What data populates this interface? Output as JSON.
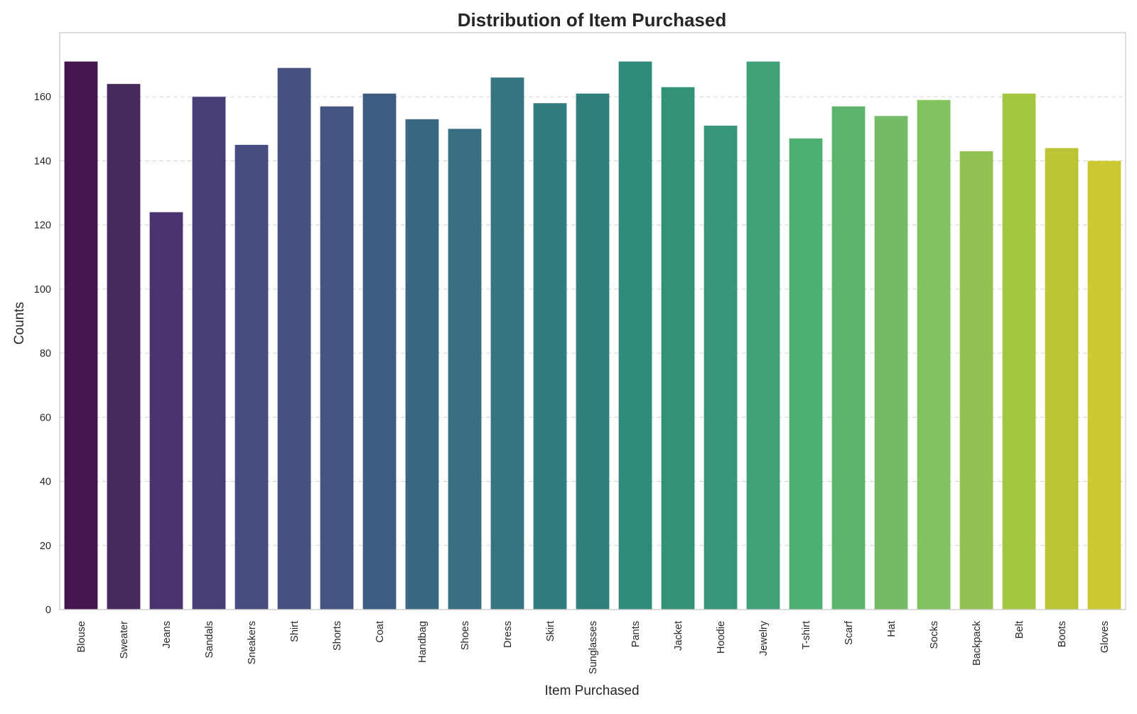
{
  "chart_data": {
    "type": "bar",
    "title": "Distribution of Item Purchased",
    "xlabel": "Item Purchased",
    "ylabel": "Counts",
    "ylim": [
      0,
      180
    ],
    "yticks": [
      0,
      20,
      40,
      60,
      80,
      100,
      120,
      140,
      160
    ],
    "grid": "horizontal-dashed",
    "categories": [
      "Blouse",
      "Sweater",
      "Jeans",
      "Sandals",
      "Sneakers",
      "Shirt",
      "Shorts",
      "Coat",
      "Handbag",
      "Shoes",
      "Dress",
      "Skirt",
      "Sunglasses",
      "Pants",
      "Jacket",
      "Hoodie",
      "Jewelry",
      "T-shirt",
      "Scarf",
      "Hat",
      "Socks",
      "Backpack",
      "Belt",
      "Boots",
      "Gloves"
    ],
    "values": [
      171,
      164,
      124,
      160,
      145,
      169,
      157,
      161,
      153,
      150,
      166,
      158,
      161,
      171,
      163,
      151,
      171,
      147,
      157,
      154,
      159,
      143,
      161,
      144,
      140
    ],
    "colors": [
      "#44154f",
      "#462a5e",
      "#4a336e",
      "#483e77",
      "#474c80",
      "#47517f",
      "#435580",
      "#3e5c82",
      "#3a6782",
      "#376f80",
      "#36747f",
      "#327b7e",
      "#2f807c",
      "#2f8a7a",
      "#329177",
      "#37967a",
      "#41a076",
      "#4daf72",
      "#5fb46c",
      "#73bb66",
      "#84c25f",
      "#92c352",
      "#a4c53f",
      "#bac434",
      "#cec832"
    ]
  }
}
